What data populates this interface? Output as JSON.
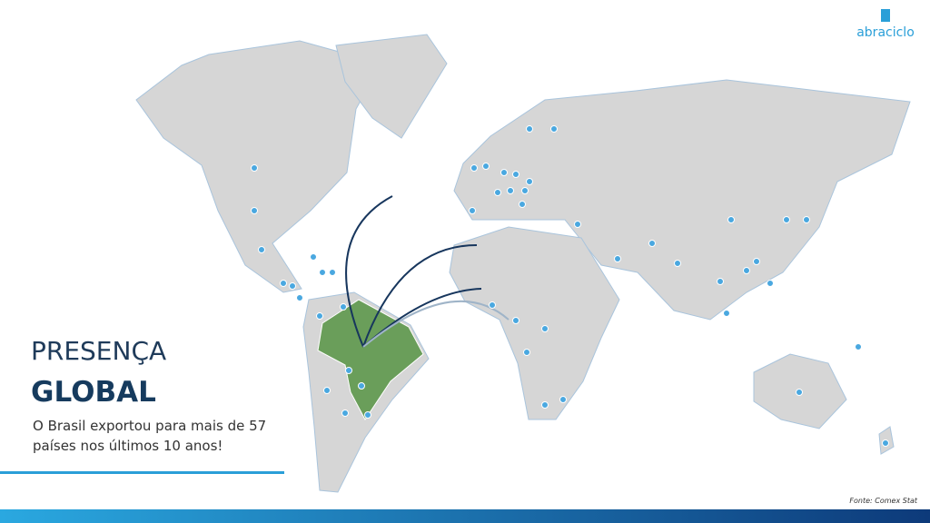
{
  "logo": {
    "text": "abraciclo"
  },
  "title": {
    "line1": "PRESENÇA",
    "line2": "GLOBAL"
  },
  "body": {
    "lines": [
      "O Brasil exportou para mais de 57",
      "países nos últimos 10 anos!"
    ]
  },
  "footer": {
    "source": "Fonte: Comex Stat"
  }
}
